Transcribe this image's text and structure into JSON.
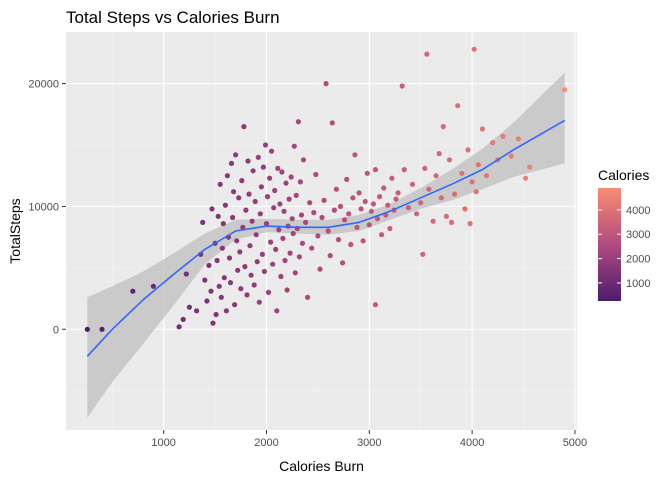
{
  "chart_data": {
    "type": "scatter",
    "title": "Total Steps vs Calories Burn",
    "xlabel": "Calories Burn",
    "ylabel": "TotalSteps",
    "xlim": [
      50,
      5020
    ],
    "ylim": [
      -8200,
      24200
    ],
    "x_ticks": [
      1000,
      2000,
      3000,
      4000,
      5000
    ],
    "y_ticks": [
      0,
      10000,
      20000
    ],
    "grid": true,
    "legend": {
      "title": "Calories",
      "position": "right",
      "ticks": [
        1000,
        2000,
        3000,
        4000
      ],
      "range": [
        257,
        4900
      ],
      "color_low": "#4b1d6e",
      "color_high": "#f98c73"
    },
    "colors": {
      "panel_bg": "#ebebeb",
      "grid_major": "#ffffff",
      "grid_minor": "#f3f3f3",
      "smooth_line": "#3366ff",
      "ribbon": "#c4c4c4"
    },
    "smooth": {
      "x": [
        257,
        500,
        800,
        1100,
        1400,
        1700,
        2000,
        2300,
        2600,
        2900,
        3200,
        3500,
        3800,
        4100,
        4400,
        4900
      ],
      "y": [
        -2200,
        0,
        2400,
        4500,
        6500,
        8000,
        8400,
        8300,
        8300,
        8700,
        9600,
        10700,
        11800,
        13000,
        14600,
        17000
      ],
      "lower": [
        -7200,
        -4300,
        -1200,
        2000,
        5300,
        7300,
        7900,
        7800,
        7700,
        8000,
        8900,
        9800,
        10500,
        11400,
        12400,
        13500
      ],
      "upper": [
        2600,
        3500,
        4700,
        6200,
        7800,
        8900,
        9000,
        8900,
        8900,
        9300,
        10200,
        11500,
        13000,
        14700,
        16800,
        20900
      ]
    },
    "points": [
      [
        257,
        0
      ],
      [
        400,
        0
      ],
      [
        700,
        3100
      ],
      [
        900,
        3500
      ],
      [
        1150,
        200
      ],
      [
        1190,
        800
      ],
      [
        1220,
        4500
      ],
      [
        1250,
        1800
      ],
      [
        1320,
        1500
      ],
      [
        1360,
        6100
      ],
      [
        1380,
        8700
      ],
      [
        1400,
        4000
      ],
      [
        1420,
        2300
      ],
      [
        1440,
        5200
      ],
      [
        1460,
        3100
      ],
      [
        1470,
        9800
      ],
      [
        1480,
        500
      ],
      [
        1500,
        7000
      ],
      [
        1510,
        1200
      ],
      [
        1520,
        5600
      ],
      [
        1530,
        9200
      ],
      [
        1540,
        3500
      ],
      [
        1550,
        11800
      ],
      [
        1560,
        2600
      ],
      [
        1570,
        6600
      ],
      [
        1580,
        8600
      ],
      [
        1590,
        4200
      ],
      [
        1600,
        10100
      ],
      [
        1610,
        1500
      ],
      [
        1620,
        12500
      ],
      [
        1630,
        7500
      ],
      [
        1640,
        5800
      ],
      [
        1650,
        3800
      ],
      [
        1660,
        13500
      ],
      [
        1670,
        9100
      ],
      [
        1680,
        11200
      ],
      [
        1690,
        2000
      ],
      [
        1700,
        14200
      ],
      [
        1710,
        7200
      ],
      [
        1720,
        4800
      ],
      [
        1730,
        10700
      ],
      [
        1740,
        6300
      ],
      [
        1750,
        3300
      ],
      [
        1760,
        12100
      ],
      [
        1770,
        8300
      ],
      [
        1780,
        16500
      ],
      [
        1790,
        5100
      ],
      [
        1800,
        9700
      ],
      [
        1810,
        2800
      ],
      [
        1820,
        13700
      ],
      [
        1830,
        11000
      ],
      [
        1840,
        6800
      ],
      [
        1850,
        4400
      ],
      [
        1860,
        8800
      ],
      [
        1870,
        12900
      ],
      [
        1880,
        3600
      ],
      [
        1890,
        10400
      ],
      [
        1900,
        7700
      ],
      [
        1910,
        5500
      ],
      [
        1920,
        14000
      ],
      [
        1930,
        2200
      ],
      [
        1940,
        9400
      ],
      [
        1950,
        11600
      ],
      [
        1960,
        6100
      ],
      [
        1970,
        13200
      ],
      [
        1980,
        4700
      ],
      [
        1990,
        15000
      ],
      [
        2000,
        8600
      ],
      [
        2010,
        10800
      ],
      [
        2020,
        3000
      ],
      [
        2030,
        12300
      ],
      [
        2040,
        7100
      ],
      [
        2050,
        14500
      ],
      [
        2060,
        5300
      ],
      [
        2070,
        9900
      ],
      [
        2080,
        11300
      ],
      [
        2090,
        6500
      ],
      [
        2100,
        1500
      ],
      [
        2110,
        13100
      ],
      [
        2120,
        8100
      ],
      [
        2130,
        10200
      ],
      [
        2140,
        4300
      ],
      [
        2150,
        12800
      ],
      [
        2160,
        7400
      ],
      [
        2170,
        9600
      ],
      [
        2180,
        5600
      ],
      [
        2190,
        11900
      ],
      [
        2200,
        3200
      ],
      [
        2210,
        8400
      ],
      [
        2220,
        10600
      ],
      [
        2230,
        6200
      ],
      [
        2240,
        12400
      ],
      [
        2250,
        9000
      ],
      [
        2260,
        7800
      ],
      [
        2270,
        14900
      ],
      [
        2280,
        4600
      ],
      [
        2290,
        10900
      ],
      [
        2300,
        8200
      ],
      [
        2310,
        16900
      ],
      [
        2320,
        5900
      ],
      [
        2330,
        12000
      ],
      [
        2340,
        9300
      ],
      [
        2350,
        7000
      ],
      [
        2360,
        13800
      ],
      [
        2380,
        8700
      ],
      [
        2400,
        2600
      ],
      [
        2420,
        10300
      ],
      [
        2440,
        6600
      ],
      [
        2460,
        9500
      ],
      [
        2480,
        12600
      ],
      [
        2500,
        7600
      ],
      [
        2520,
        4900
      ],
      [
        2540,
        9100
      ],
      [
        2560,
        10500
      ],
      [
        2580,
        20000
      ],
      [
        2600,
        8000
      ],
      [
        2620,
        6000
      ],
      [
        2640,
        16800
      ],
      [
        2660,
        9700
      ],
      [
        2680,
        11400
      ],
      [
        2700,
        7300
      ],
      [
        2720,
        10000
      ],
      [
        2740,
        5400
      ],
      [
        2760,
        8900
      ],
      [
        2780,
        12200
      ],
      [
        2800,
        9400
      ],
      [
        2820,
        6900
      ],
      [
        2840,
        10700
      ],
      [
        2860,
        14200
      ],
      [
        2880,
        8300
      ],
      [
        2900,
        11100
      ],
      [
        2920,
        9800
      ],
      [
        2940,
        7200
      ],
      [
        2960,
        10400
      ],
      [
        2980,
        12700
      ],
      [
        3000,
        8500
      ],
      [
        3020,
        9600
      ],
      [
        3040,
        10200
      ],
      [
        3060,
        2000
      ],
      [
        3060,
        13000
      ],
      [
        3080,
        9000
      ],
      [
        3100,
        10800
      ],
      [
        3120,
        7700
      ],
      [
        3140,
        11500
      ],
      [
        3160,
        9300
      ],
      [
        3180,
        10100
      ],
      [
        3200,
        8200
      ],
      [
        3220,
        12300
      ],
      [
        3240,
        9700
      ],
      [
        3260,
        10600
      ],
      [
        3280,
        11100
      ],
      [
        3320,
        19800
      ],
      [
        3340,
        13000
      ],
      [
        3380,
        9900
      ],
      [
        3420,
        11800
      ],
      [
        3460,
        9400
      ],
      [
        3500,
        10300
      ],
      [
        3520,
        6100
      ],
      [
        3540,
        13100
      ],
      [
        3560,
        22400
      ],
      [
        3580,
        11400
      ],
      [
        3620,
        8800
      ],
      [
        3650,
        12500
      ],
      [
        3680,
        14300
      ],
      [
        3700,
        10700
      ],
      [
        3720,
        16500
      ],
      [
        3750,
        9200
      ],
      [
        3780,
        13800
      ],
      [
        3800,
        8700
      ],
      [
        3830,
        11000
      ],
      [
        3860,
        18200
      ],
      [
        3900,
        12700
      ],
      [
        3930,
        9800
      ],
      [
        3960,
        14600
      ],
      [
        3980,
        8600
      ],
      [
        4000,
        12000
      ],
      [
        4020,
        22800
      ],
      [
        4040,
        11200
      ],
      [
        4060,
        13400
      ],
      [
        4100,
        16300
      ],
      [
        4140,
        12500
      ],
      [
        4200,
        15200
      ],
      [
        4250,
        13800
      ],
      [
        4300,
        15700
      ],
      [
        4380,
        14100
      ],
      [
        4450,
        15500
      ],
      [
        4520,
        12300
      ],
      [
        4560,
        13200
      ],
      [
        4900,
        19500
      ]
    ]
  }
}
